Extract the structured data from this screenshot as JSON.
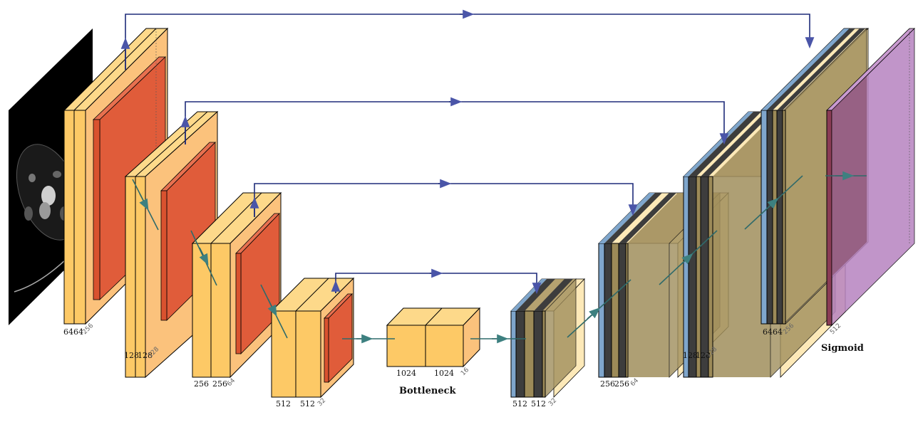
{
  "encoder": [
    {
      "c1": "64",
      "c2": "64",
      "size": "256"
    },
    {
      "c1": "128",
      "c2": "128",
      "size": "128"
    },
    {
      "c1": "256",
      "c2": "256",
      "size": "64"
    },
    {
      "c1": "512",
      "c2": "512",
      "size": "32"
    }
  ],
  "bottleneck": {
    "c1": "1024",
    "c2": "1024",
    "size": "16",
    "caption": "Bottleneck"
  },
  "decoder": [
    {
      "c1": "512",
      "c2": "512",
      "size": "32"
    },
    {
      "c1": "256",
      "c2": "256",
      "size": "64"
    },
    {
      "c1": "128",
      "c2": "128",
      "size": "128"
    },
    {
      "c1": "64",
      "c2": "64",
      "size": "256"
    }
  ],
  "output": {
    "size": "512",
    "caption": "Sigmoid"
  },
  "colors": {
    "conv": "#fdc966",
    "pool": "#e05c3a",
    "upconv": "#7fa6cc",
    "decoder_dark": "#3d3d3d",
    "decoder_body": "#9c8a58",
    "output": "#b783c0",
    "skip_arrow": "#1e2b7a",
    "flow_arrow": "#2f6a6a"
  }
}
